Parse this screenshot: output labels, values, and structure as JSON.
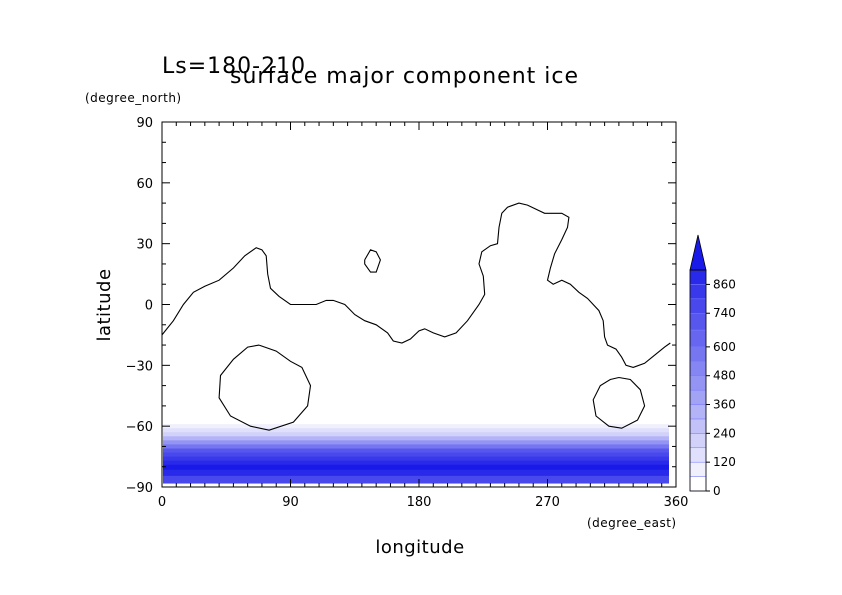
{
  "chart_data": {
    "type": "heatmap",
    "title": "surface major component ice",
    "subtitle": "Ls=180-210",
    "xlabel": "longitude",
    "ylabel": "latitude",
    "x_unit": "(degree_east)",
    "y_unit": "(degree_north)",
    "xlim": [
      0,
      360
    ],
    "ylim": [
      -90,
      90
    ],
    "x_ticks": [
      "0",
      "90",
      "180",
      "270",
      "360"
    ],
    "y_ticks": [
      "90",
      "60",
      "30",
      "0",
      "−30",
      "−60",
      "−90"
    ],
    "x_tick_values": [
      0,
      90,
      180,
      270,
      360
    ],
    "y_tick_values": [
      90,
      60,
      30,
      0,
      -30,
      -60,
      -90
    ],
    "colorbar": {
      "tick_labels": [
        "0",
        "120",
        "240",
        "360",
        "480",
        "600",
        "740",
        "860"
      ],
      "tick_values": [
        0,
        120,
        240,
        360,
        480,
        600,
        740,
        860
      ],
      "levels": [
        0,
        60,
        120,
        180,
        240,
        300,
        360,
        420,
        480,
        540,
        600,
        670,
        740,
        800,
        860,
        920
      ],
      "max": 920,
      "extend": "max",
      "low_color": "#ffffff",
      "high_color": "#1a1ae8"
    },
    "ice_band": {
      "lat_top": -59,
      "lat_bottom": -88,
      "rows": [
        {
          "lat": -60,
          "level": 1
        },
        {
          "lat": -62,
          "level": 2
        },
        {
          "lat": -64,
          "level": 3
        },
        {
          "lat": -66,
          "level": 5
        },
        {
          "lat": -68,
          "level": 7
        },
        {
          "lat": -70,
          "level": 9
        },
        {
          "lat": -72,
          "level": 11
        },
        {
          "lat": -74,
          "level": 12
        },
        {
          "lat": -76,
          "level": 13
        },
        {
          "lat": -78,
          "level": 14
        },
        {
          "lat": -80,
          "level": 15
        },
        {
          "lat": -83,
          "level": 14
        },
        {
          "lat": -86,
          "level": 12
        }
      ]
    },
    "contours": [
      {
        "name": "",
        "points": [
          [
            0,
            -15
          ],
          [
            8,
            -8
          ],
          [
            15,
            0
          ],
          [
            22,
            6
          ],
          [
            30,
            9
          ],
          [
            40,
            12
          ],
          [
            50,
            18
          ],
          [
            58,
            24
          ],
          [
            66,
            28
          ],
          [
            70,
            27
          ],
          [
            73,
            24
          ],
          [
            74,
            15
          ],
          [
            76,
            8
          ],
          [
            82,
            4
          ],
          [
            90,
            0
          ],
          [
            100,
            0
          ],
          [
            108,
            0
          ],
          [
            115,
            2
          ],
          [
            120,
            2
          ],
          [
            128,
            0
          ],
          [
            135,
            -5
          ],
          [
            142,
            -8
          ],
          [
            150,
            -10
          ],
          [
            158,
            -14
          ],
          [
            162,
            -18
          ],
          [
            168,
            -19
          ],
          [
            174,
            -17
          ],
          [
            180,
            -13
          ],
          [
            184,
            -12
          ],
          [
            190,
            -14
          ],
          [
            198,
            -16
          ],
          [
            206,
            -14
          ],
          [
            214,
            -8
          ],
          [
            222,
            0
          ],
          [
            226,
            5
          ],
          [
            225,
            14
          ],
          [
            222,
            20
          ],
          [
            224,
            26
          ],
          [
            230,
            29
          ],
          [
            235,
            30
          ],
          [
            236,
            38
          ],
          [
            238,
            45
          ],
          [
            242,
            48
          ],
          [
            250,
            50
          ],
          [
            256,
            49
          ],
          [
            262,
            47
          ],
          [
            268,
            45
          ],
          [
            272,
            45
          ],
          [
            280,
            45
          ],
          [
            285,
            43
          ],
          [
            284,
            38
          ],
          [
            280,
            32
          ],
          [
            275,
            25
          ],
          [
            272,
            18
          ],
          [
            270,
            12
          ],
          [
            274,
            10
          ],
          [
            280,
            12
          ],
          [
            286,
            10
          ],
          [
            292,
            6
          ],
          [
            298,
            3
          ],
          [
            302,
            0
          ],
          [
            306,
            -3
          ],
          [
            309,
            -8
          ],
          [
            310,
            -16
          ],
          [
            312,
            -20
          ],
          [
            318,
            -22
          ],
          [
            322,
            -26
          ],
          [
            325,
            -30
          ],
          [
            330,
            -31
          ],
          [
            338,
            -29
          ],
          [
            345,
            -25
          ],
          [
            352,
            -21
          ],
          [
            356,
            -19
          ]
        ]
      },
      {
        "name": "",
        "points": [
          [
            142,
            22
          ],
          [
            146,
            27
          ],
          [
            150,
            26
          ],
          [
            153,
            22
          ],
          [
            150,
            16
          ],
          [
            146,
            16
          ],
          [
            142,
            20
          ],
          [
            142,
            22
          ]
        ]
      },
      {
        "name": "",
        "points": [
          [
            68,
            -20
          ],
          [
            80,
            -23
          ],
          [
            90,
            -28
          ],
          [
            98,
            -31
          ],
          [
            104,
            -40
          ],
          [
            102,
            -50
          ],
          [
            92,
            -58
          ],
          [
            75,
            -62
          ],
          [
            62,
            -60
          ],
          [
            48,
            -55
          ],
          [
            40,
            -46
          ],
          [
            41,
            -35
          ],
          [
            50,
            -27
          ],
          [
            60,
            -21
          ],
          [
            68,
            -20
          ]
        ]
      },
      {
        "name": "",
        "points": [
          [
            320,
            -36
          ],
          [
            328,
            -37
          ],
          [
            335,
            -42
          ],
          [
            338,
            -50
          ],
          [
            333,
            -57
          ],
          [
            322,
            -61
          ],
          [
            313,
            -60
          ],
          [
            304,
            -55
          ],
          [
            302,
            -47
          ],
          [
            307,
            -40
          ],
          [
            314,
            -37
          ],
          [
            320,
            -36
          ]
        ]
      }
    ]
  }
}
